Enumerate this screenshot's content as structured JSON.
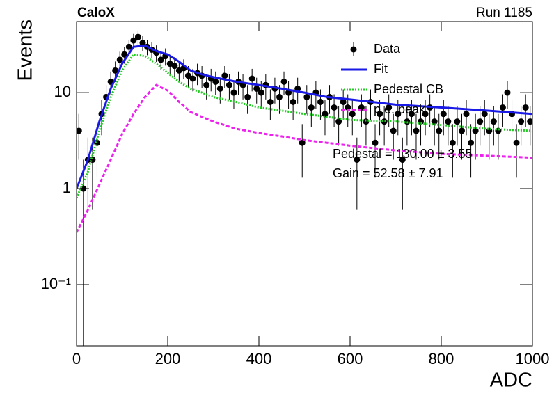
{
  "chart_data": {
    "type": "scatter",
    "title": "CaloX",
    "subtitle": "Run 1185",
    "x_label": "ADC",
    "y_label": "Events",
    "xlim": [
      0,
      1000
    ],
    "xticks": [
      0,
      200,
      400,
      600,
      800,
      1000
    ],
    "ylim": [
      0.023,
      55
    ],
    "yticks": [
      {
        "value": 0.1,
        "label": "10⁻¹"
      },
      1,
      10
    ],
    "log_y": true,
    "legend": "upper-right",
    "annotations": [
      "Pedestal = 130.00 ± 3.55",
      "Gain = 52.58 ± 7.91"
    ],
    "series": [
      {
        "name": "Data",
        "mode": "points",
        "color": "#000000",
        "x": [
          5,
          15,
          25,
          35,
          45,
          55,
          65,
          75,
          85,
          95,
          105,
          115,
          125,
          135,
          145,
          155,
          165,
          175,
          185,
          195,
          205,
          215,
          225,
          235,
          245,
          255,
          265,
          275,
          285,
          295,
          305,
          315,
          325,
          335,
          345,
          355,
          365,
          375,
          385,
          395,
          405,
          415,
          425,
          435,
          445,
          455,
          465,
          475,
          485,
          495,
          505,
          515,
          525,
          535,
          545,
          555,
          565,
          575,
          585,
          595,
          605,
          615,
          625,
          635,
          645,
          655,
          665,
          675,
          685,
          695,
          705,
          715,
          725,
          735,
          745,
          755,
          765,
          775,
          785,
          795,
          805,
          815,
          825,
          835,
          845,
          855,
          865,
          875,
          885,
          895,
          905,
          915,
          925,
          935,
          945,
          955,
          965,
          975,
          985,
          995
        ],
        "values": [
          4,
          1,
          2,
          2,
          3,
          6,
          9,
          13,
          17,
          22,
          25,
          30,
          35,
          38,
          33,
          30,
          28,
          26,
          22,
          24,
          20,
          19,
          17,
          18,
          15,
          14,
          16,
          15,
          12,
          14,
          13,
          11,
          15,
          12,
          10,
          13,
          12,
          9,
          14,
          11,
          10,
          12,
          8,
          11,
          9,
          13,
          10,
          8,
          11,
          3,
          9,
          7,
          10,
          8,
          6,
          9,
          7,
          5,
          8,
          7,
          6,
          2,
          7,
          5,
          8,
          3,
          6,
          5,
          7,
          4,
          6,
          2,
          5,
          6,
          4,
          5,
          6,
          7,
          5,
          4,
          6,
          5,
          3,
          5,
          4,
          6,
          3,
          4,
          5,
          6,
          4,
          5,
          4,
          7,
          10,
          6,
          3,
          5,
          7,
          5
        ],
        "errors": [
          2,
          1,
          1.4,
          1.4,
          1.7,
          2.4,
          3,
          3.6,
          4.1,
          4.7,
          5,
          5.5,
          5.9,
          6.2,
          5.7,
          5.5,
          5.3,
          5.1,
          4.7,
          4.9,
          4.5,
          4.4,
          4.1,
          4.2,
          3.9,
          3.7,
          4,
          3.9,
          3.5,
          3.7,
          3.6,
          3.3,
          3.9,
          3.5,
          3.2,
          3.6,
          3.5,
          3,
          3.7,
          3.3,
          3.2,
          3.5,
          2.8,
          3.3,
          3,
          3.6,
          3.2,
          2.8,
          3.3,
          1.7,
          3,
          2.6,
          3.2,
          2.8,
          2.4,
          3,
          2.6,
          2.2,
          2.8,
          2.6,
          2.4,
          1.4,
          2.6,
          2.2,
          2.8,
          1.7,
          2.4,
          2.2,
          2.6,
          2,
          2.4,
          1.4,
          2.2,
          2.4,
          2,
          2.2,
          2.4,
          2.6,
          2.2,
          2,
          2.4,
          2.2,
          1.7,
          2.2,
          2,
          2.4,
          1.7,
          2,
          2.2,
          2.4,
          2,
          2.2,
          2,
          2.6,
          3.2,
          2.4,
          1.7,
          2.2,
          2.6,
          2.2
        ]
      },
      {
        "name": "Fit",
        "mode": "line",
        "dash": "solid",
        "color": "#1a1ae6",
        "x": [
          0,
          25,
          50,
          75,
          100,
          125,
          150,
          175,
          200,
          225,
          250,
          275,
          300,
          350,
          400,
          450,
          500,
          550,
          600,
          700,
          800,
          900,
          1000
        ],
        "values": [
          1,
          2,
          5,
          11,
          20,
          30,
          31,
          27,
          25,
          21,
          17,
          15.5,
          14.5,
          13,
          12,
          11,
          10,
          9,
          8.5,
          7.5,
          7,
          6.5,
          6
        ]
      },
      {
        "name": "Pedestal CB",
        "mode": "line",
        "dash": "dotted",
        "color": "#22cc22",
        "x": [
          0,
          25,
          50,
          75,
          100,
          125,
          150,
          175,
          200,
          225,
          250,
          275,
          300,
          350,
          400,
          450,
          500,
          550,
          600,
          700,
          800,
          900,
          1000
        ],
        "values": [
          0.8,
          1.5,
          4,
          9,
          17,
          25,
          24,
          20,
          16,
          13,
          11,
          10,
          9,
          8,
          7,
          6.5,
          6,
          5.6,
          5.2,
          5,
          4.6,
          4.2,
          4
        ]
      },
      {
        "name": "p.e. peak",
        "mode": "line",
        "dash": "dashed",
        "color": "#ee22ee",
        "x": [
          0,
          25,
          50,
          75,
          100,
          125,
          150,
          175,
          200,
          225,
          250,
          275,
          300,
          350,
          400,
          450,
          500,
          550,
          600,
          700,
          800,
          900,
          1000
        ],
        "values": [
          0.35,
          0.6,
          1.1,
          2,
          3.7,
          6,
          9,
          12,
          10.5,
          8,
          6.3,
          5.6,
          5,
          4.2,
          3.8,
          3.5,
          3.2,
          3,
          2.8,
          2.5,
          2.3,
          2.2,
          2.1
        ]
      }
    ]
  }
}
